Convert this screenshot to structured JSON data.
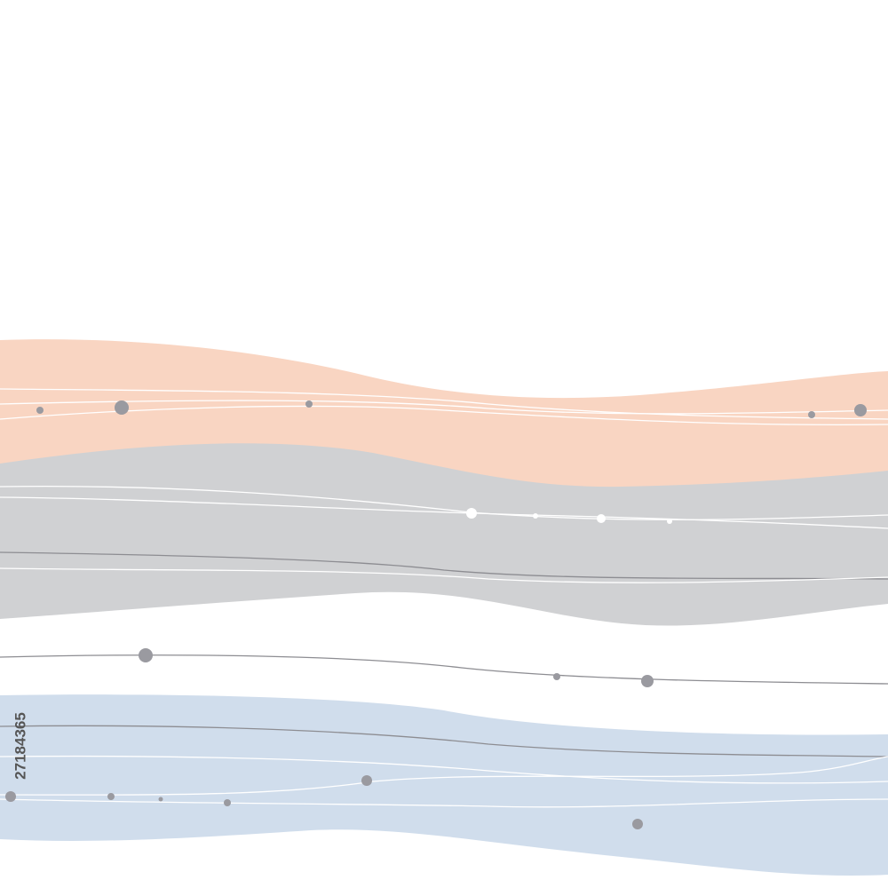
{
  "id_text": "27184365"
}
